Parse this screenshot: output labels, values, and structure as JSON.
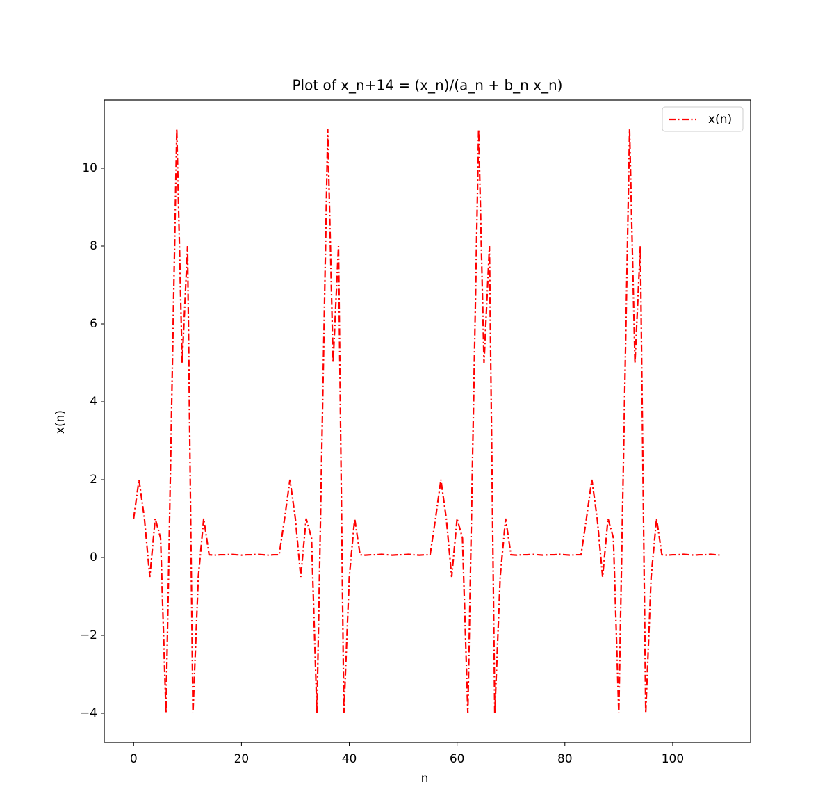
{
  "chart_data": {
    "type": "line",
    "title": "Plot of x_n+14 = (x_n)/(a_n + b_n x_n)",
    "xlabel": "n",
    "ylabel": "x(n)",
    "x": [
      0,
      1,
      2,
      3,
      4,
      5,
      6,
      7,
      8,
      9,
      10,
      11,
      12,
      13,
      14,
      15,
      16,
      17,
      18,
      19,
      20,
      21,
      22,
      23,
      24,
      25,
      26,
      27,
      28,
      29,
      30,
      31,
      32,
      33,
      34,
      35,
      36,
      37,
      38,
      39,
      40,
      41,
      42,
      43,
      44,
      45,
      46,
      47,
      48,
      49,
      50,
      51,
      52,
      53,
      54,
      55,
      56,
      57,
      58,
      59,
      60,
      61,
      62,
      63,
      64,
      65,
      66,
      67,
      68,
      69,
      70,
      71,
      72,
      73,
      74,
      75,
      76,
      77,
      78,
      79,
      80,
      81,
      82,
      83,
      84,
      85,
      86,
      87,
      88,
      89,
      90,
      91,
      92,
      93,
      94,
      95,
      96,
      97,
      98,
      99,
      100,
      101,
      102,
      103,
      104,
      105,
      106,
      107,
      108,
      109
    ],
    "series": [
      {
        "name": "x(n)",
        "color": "#ff0000",
        "values": [
          1,
          2,
          1,
          -0.5,
          1,
          0.5,
          -4,
          3.5,
          11,
          5,
          8,
          -4,
          -0.5,
          1,
          0.07,
          0.06,
          0.07,
          0.07,
          0.08,
          0.07,
          0.06,
          0.07,
          0.07,
          0.08,
          0.07,
          0.06,
          0.07,
          0.07,
          1,
          2,
          1,
          -0.5,
          1,
          0.5,
          -4,
          3.5,
          11,
          5,
          8,
          -4,
          -0.5,
          1,
          0.07,
          0.06,
          0.07,
          0.07,
          0.08,
          0.07,
          0.06,
          0.07,
          0.07,
          0.08,
          0.07,
          0.06,
          0.07,
          0.07,
          1,
          2,
          1,
          -0.5,
          1,
          0.5,
          -4,
          3.5,
          11,
          5,
          8,
          -4,
          -0.5,
          1,
          0.07,
          0.06,
          0.07,
          0.07,
          0.08,
          0.07,
          0.06,
          0.07,
          0.07,
          0.08,
          0.07,
          0.06,
          0.07,
          0.07,
          1,
          2,
          1,
          -0.5,
          1,
          0.5,
          -4,
          3.5,
          11,
          5,
          8,
          -4,
          -0.5,
          1,
          0.07,
          0.06,
          0.07,
          0.07,
          0.08,
          0.07,
          0.06,
          0.07,
          0.07,
          0.08,
          0.07,
          0.06
        ]
      }
    ],
    "xlim": [
      -5.45,
      114.45
    ],
    "ylim": [
      -4.75,
      11.75
    ],
    "xticks": [
      0,
      20,
      40,
      60,
      80,
      100
    ],
    "yticks": [
      {
        "value": -4,
        "label": "−4"
      },
      {
        "value": -2,
        "label": "−2"
      },
      0,
      2,
      4,
      6,
      8,
      10
    ],
    "legend": "upper right",
    "grid": false
  }
}
